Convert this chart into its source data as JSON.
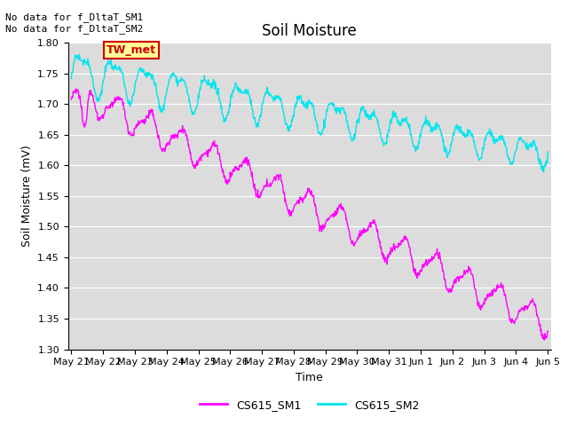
{
  "title": "Soil Moisture",
  "xlabel": "Time",
  "ylabel": "Soil Moisture (mV)",
  "ylim": [
    1.3,
    1.8
  ],
  "bg_color": "#dcdcdc",
  "fig_color": "#ffffff",
  "line1_color": "#ff00ff",
  "line2_color": "#00e5ee",
  "annotation_text": "No data for f_DltaT_SM1\nNo data for f_DltaT_SM2",
  "tw_met_label": "TW_met",
  "tw_met_bg": "#ffff99",
  "tw_met_border": "#cc0000",
  "legend_labels": [
    "CS615_SM1",
    "CS615_SM2"
  ],
  "xtick_labels": [
    "May 21",
    "May 22",
    "May 23",
    "May 24",
    "May 25",
    "May 26",
    "May 27",
    "May 28",
    "May 29",
    "May 30",
    "May 31",
    "Jun 1",
    "Jun 2",
    "Jun 3",
    "Jun 4",
    "Jun 5"
  ],
  "ytick_values": [
    1.3,
    1.35,
    1.4,
    1.45,
    1.5,
    1.55,
    1.6,
    1.65,
    1.7,
    1.75,
    1.8
  ],
  "grid_color": "#ffffff",
  "annotation_fontsize": 8,
  "title_fontsize": 12,
  "tick_fontsize": 8,
  "label_fontsize": 9
}
